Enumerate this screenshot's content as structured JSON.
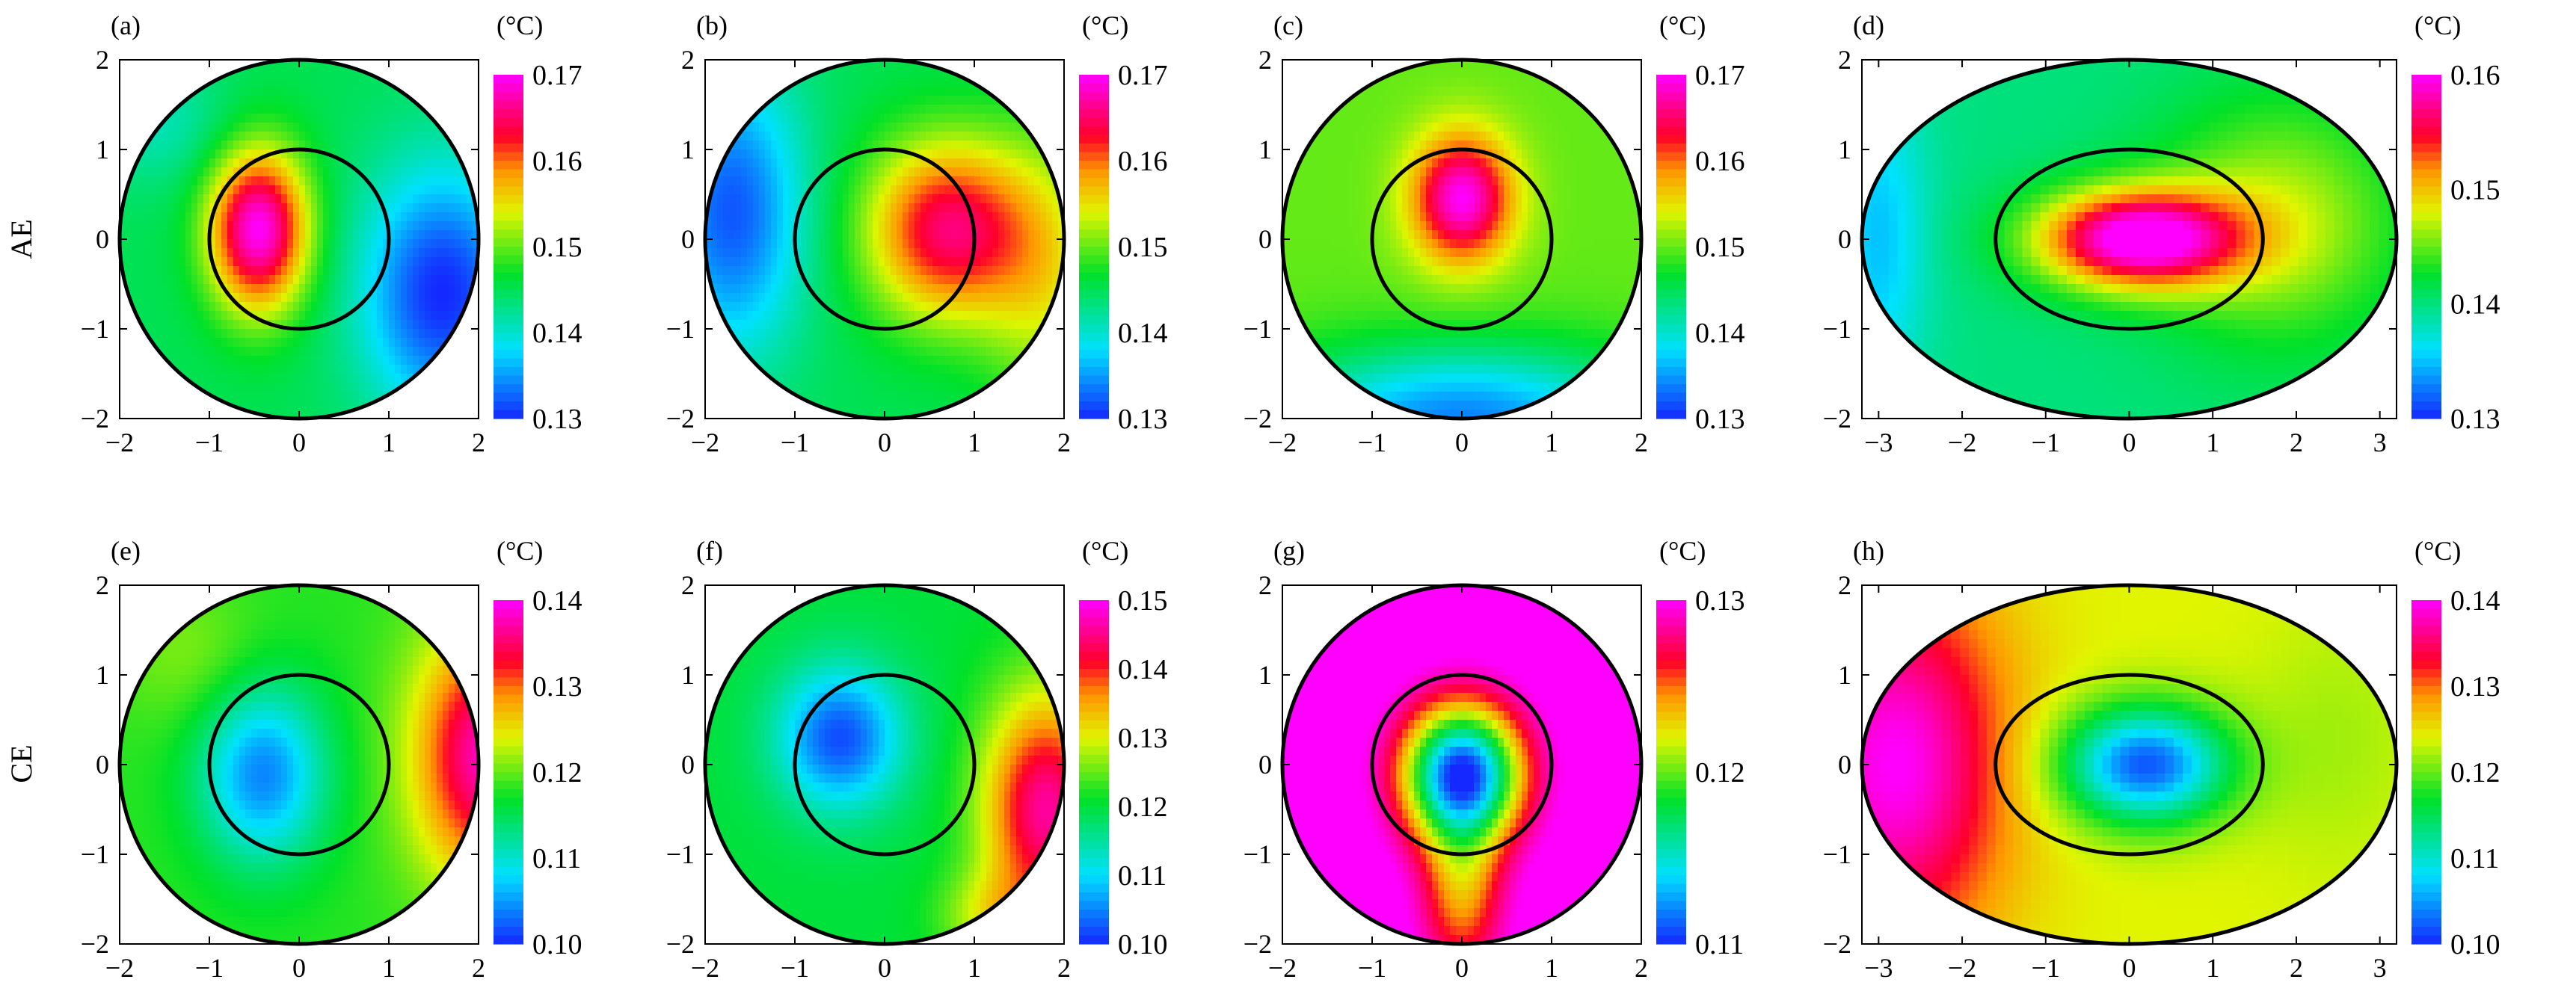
{
  "figure": {
    "row_labels": [
      "AE",
      "CE"
    ],
    "unit_label": "(°C)"
  },
  "chart_data": [
    {
      "type": "heatmap",
      "panel_label": "(a)",
      "shape": "circle",
      "xlim": [
        -2,
        2
      ],
      "ylim": [
        -2,
        2
      ],
      "x_ticks": [
        -2,
        -1,
        0,
        1,
        2
      ],
      "y_ticks": [
        -2,
        -1,
        0,
        1,
        2
      ],
      "colorbar": {
        "min": 0.13,
        "max": 0.17,
        "ticks": [
          0.13,
          0.14,
          0.15,
          0.16,
          0.17
        ]
      },
      "field": {
        "background": 0.145,
        "blobs": [
          {
            "x": -0.45,
            "y": 0.1,
            "sx": 0.55,
            "sy": 0.9,
            "amp": 0.025
          },
          {
            "x": 1.6,
            "y": -0.6,
            "sx": 0.9,
            "sy": 1.4,
            "amp": -0.015
          },
          {
            "x": -1.6,
            "y": 1.3,
            "sx": 0.9,
            "sy": 0.7,
            "amp": -0.004
          }
        ]
      }
    },
    {
      "type": "heatmap",
      "panel_label": "(b)",
      "shape": "circle",
      "xlim": [
        -2,
        2
      ],
      "ylim": [
        -2,
        2
      ],
      "x_ticks": [
        -2,
        -1,
        0,
        1,
        2
      ],
      "y_ticks": [
        -2,
        -1,
        0,
        1,
        2
      ],
      "colorbar": {
        "min": 0.13,
        "max": 0.17,
        "ticks": [
          0.13,
          0.14,
          0.15,
          0.16,
          0.17
        ]
      },
      "field": {
        "background": 0.145,
        "blobs": [
          {
            "x": 0.7,
            "y": 0.1,
            "sx": 0.9,
            "sy": 1.0,
            "amp": 0.02
          },
          {
            "x": -1.7,
            "y": 0.3,
            "sx": 0.8,
            "sy": 1.6,
            "amp": -0.013
          },
          {
            "x": 1.8,
            "y": -0.4,
            "sx": 0.7,
            "sy": 1.5,
            "amp": 0.008
          }
        ]
      }
    },
    {
      "type": "heatmap",
      "panel_label": "(c)",
      "shape": "circle",
      "xlim": [
        -2,
        2
      ],
      "ylim": [
        -2,
        2
      ],
      "x_ticks": [
        -2,
        -1,
        0,
        1,
        2
      ],
      "y_ticks": [
        -2,
        -1,
        0,
        1,
        2
      ],
      "colorbar": {
        "min": 0.13,
        "max": 0.17,
        "ticks": [
          0.13,
          0.14,
          0.15,
          0.16,
          0.17
        ]
      },
      "field": {
        "background": 0.15,
        "blobs": [
          {
            "x": 0.0,
            "y": 0.45,
            "sx": 0.55,
            "sy": 0.7,
            "amp": 0.02
          },
          {
            "x": 0.0,
            "y": -2.0,
            "sx": 2.2,
            "sy": 0.8,
            "amp": -0.016
          }
        ]
      }
    },
    {
      "type": "heatmap",
      "panel_label": "(d)",
      "shape": "ellipse",
      "xlim": [
        -3.2,
        3.2
      ],
      "ylim": [
        -2,
        2
      ],
      "x_ticks": [
        -3,
        -2,
        -1,
        0,
        1,
        2,
        3
      ],
      "y_ticks": [
        -2,
        -1,
        0,
        1,
        2
      ],
      "colorbar": {
        "min": 0.13,
        "max": 0.16,
        "ticks": [
          0.13,
          0.14,
          0.15,
          0.16
        ]
      },
      "field": {
        "background": 0.14,
        "blobs": [
          {
            "x": 0.1,
            "y": 0.0,
            "sx": 1.2,
            "sy": 0.55,
            "amp": 0.021
          },
          {
            "x": -3.0,
            "y": 0.0,
            "sx": 0.6,
            "sy": 1.8,
            "amp": -0.005
          },
          {
            "x": 1.8,
            "y": 0.2,
            "sx": 1.5,
            "sy": 1.4,
            "amp": 0.007
          }
        ]
      }
    },
    {
      "type": "heatmap",
      "panel_label": "(e)",
      "shape": "circle",
      "xlim": [
        -2,
        2
      ],
      "ylim": [
        -2,
        2
      ],
      "x_ticks": [
        -2,
        -1,
        0,
        1,
        2
      ],
      "y_ticks": [
        -2,
        -1,
        0,
        1,
        2
      ],
      "colorbar": {
        "min": 0.1,
        "max": 0.14,
        "ticks": [
          0.1,
          0.11,
          0.12,
          0.13,
          0.14
        ]
      },
      "field": {
        "background": 0.118,
        "blobs": [
          {
            "x": -0.4,
            "y": -0.1,
            "sx": 0.7,
            "sy": 1.0,
            "amp": -0.014
          },
          {
            "x": 2.1,
            "y": 0.1,
            "sx": 0.8,
            "sy": 1.4,
            "amp": 0.02
          },
          {
            "x": -1.2,
            "y": 1.2,
            "sx": 0.8,
            "sy": 0.8,
            "amp": 0.003
          }
        ]
      }
    },
    {
      "type": "heatmap",
      "panel_label": "(f)",
      "shape": "circle",
      "xlim": [
        -2,
        2
      ],
      "ylim": [
        -2,
        2
      ],
      "x_ticks": [
        -2,
        -1,
        0,
        1,
        2
      ],
      "y_ticks": [
        -2,
        -1,
        0,
        1,
        2
      ],
      "colorbar": {
        "min": 0.1,
        "max": 0.15,
        "ticks": [
          0.1,
          0.11,
          0.12,
          0.13,
          0.14,
          0.15
        ]
      },
      "field": {
        "background": 0.12,
        "blobs": [
          {
            "x": -0.5,
            "y": 0.3,
            "sx": 0.7,
            "sy": 0.8,
            "amp": -0.018
          },
          {
            "x": 1.8,
            "y": -0.5,
            "sx": 0.7,
            "sy": 1.3,
            "amp": 0.026
          },
          {
            "x": 1.2,
            "y": -1.7,
            "sx": 0.6,
            "sy": 0.5,
            "amp": 0.008
          }
        ]
      }
    },
    {
      "type": "heatmap",
      "panel_label": "(g)",
      "shape": "circle",
      "xlim": [
        -2,
        2
      ],
      "ylim": [
        -2,
        2
      ],
      "x_ticks": [
        -2,
        -1,
        0,
        1,
        2
      ],
      "y_ticks": [
        -2,
        -1,
        0,
        1,
        2
      ],
      "colorbar": {
        "min": 0.11,
        "max": 0.13,
        "ticks": [
          0.11,
          0.12,
          0.13
        ]
      },
      "field": {
        "background": 0.131,
        "blobs": [
          {
            "x": 0.0,
            "y": -0.1,
            "sx": 0.65,
            "sy": 0.75,
            "amp": -0.021
          },
          {
            "x": 0.0,
            "y": -1.4,
            "sx": 0.45,
            "sy": 0.9,
            "amp": -0.007
          }
        ]
      }
    },
    {
      "type": "heatmap",
      "panel_label": "(h)",
      "shape": "ellipse",
      "xlim": [
        -3.2,
        3.2
      ],
      "ylim": [
        -2,
        2
      ],
      "x_ticks": [
        -3,
        -2,
        -1,
        0,
        1,
        2,
        3
      ],
      "y_ticks": [
        -2,
        -1,
        0,
        1,
        2
      ],
      "colorbar": {
        "min": 0.1,
        "max": 0.14,
        "ticks": [
          0.1,
          0.11,
          0.12,
          0.13,
          0.14
        ]
      },
      "field": {
        "background": 0.124,
        "blobs": [
          {
            "x": 0.2,
            "y": 0.0,
            "sx": 1.0,
            "sy": 0.65,
            "amp": -0.022
          },
          {
            "x": -2.8,
            "y": 0.0,
            "sx": 1.3,
            "sy": 2.0,
            "amp": 0.016
          },
          {
            "x": 2.5,
            "y": 0.3,
            "sx": 1.0,
            "sy": 1.5,
            "amp": -0.002
          }
        ]
      }
    }
  ]
}
